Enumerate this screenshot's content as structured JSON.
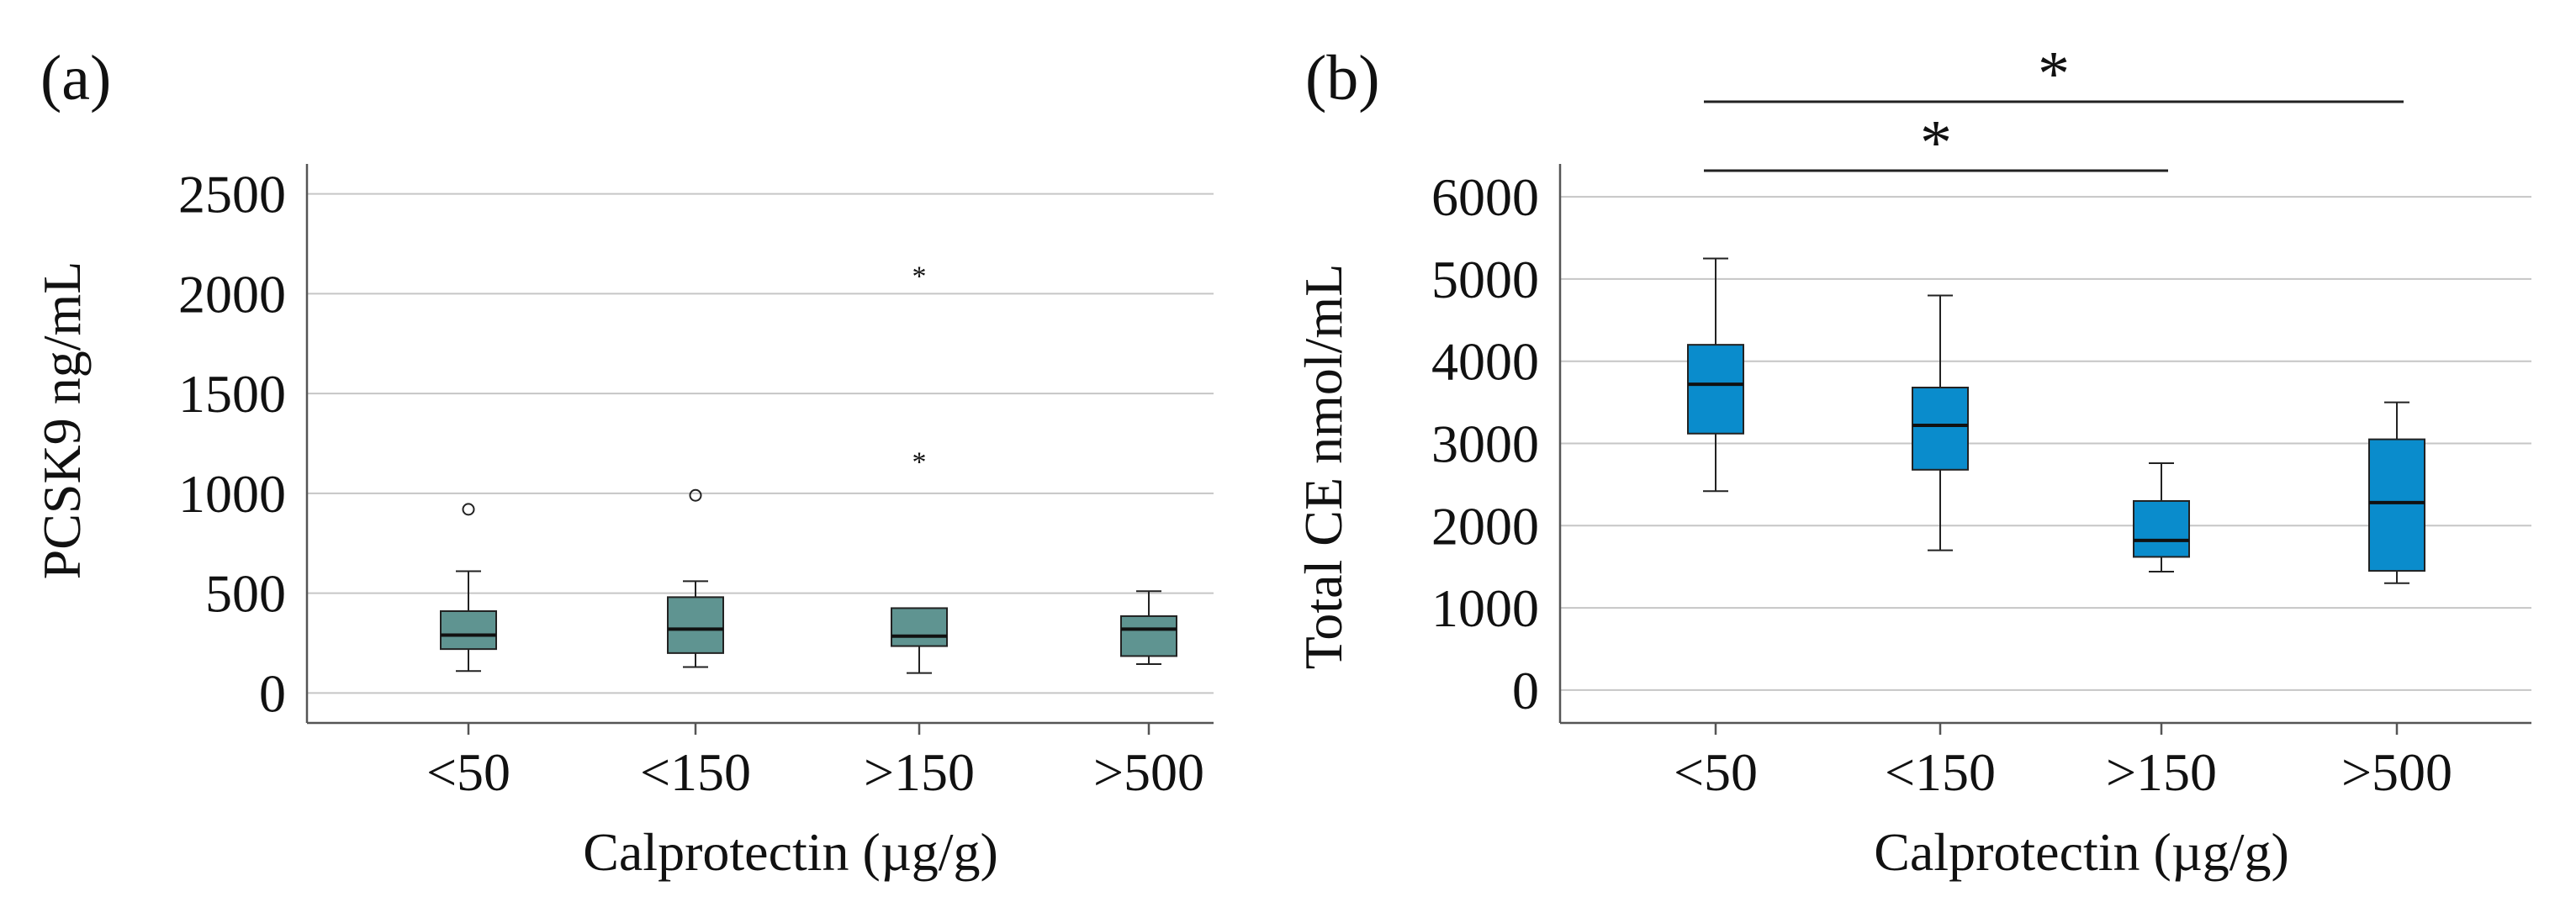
{
  "chart_data": [
    {
      "type": "box",
      "panel_label": "(a)",
      "xlabel": "Calprotectin (µg/g)",
      "ylabel": "PCSK9 ng/mL",
      "ylim": [
        -150,
        2650
      ],
      "yticks": [
        0,
        500,
        1000,
        1500,
        2000,
        2500
      ],
      "ytick_labels": [
        "0",
        "500",
        "1000",
        "1500",
        "2000",
        "2500"
      ],
      "grid": true,
      "box_color": "#5f9491",
      "categories": [
        "<50",
        "<150",
        ">150",
        ">500"
      ],
      "boxes": [
        {
          "category": "<50",
          "whisker_low": 110,
          "q1": 220,
          "median": 290,
          "q3": 410,
          "whisker_high": 610
        },
        {
          "category": "<150",
          "whisker_low": 130,
          "q1": 200,
          "median": 320,
          "q3": 480,
          "whisker_high": 560
        },
        {
          "category": ">150",
          "whisker_low": 100,
          "q1": 235,
          "median": 285,
          "q3": 425,
          "whisker_high": 425
        },
        {
          "category": ">500",
          "whisker_low": 145,
          "q1": 185,
          "median": 320,
          "q3": 385,
          "whisker_high": 510
        }
      ],
      "outliers": [
        {
          "category": "<50",
          "value": 920,
          "marker": "circle"
        },
        {
          "category": "<150",
          "value": 990,
          "marker": "circle"
        },
        {
          "category": ">150",
          "value": 2100,
          "marker": "star"
        },
        {
          "category": ">150",
          "value": 1170,
          "marker": "star"
        }
      ],
      "significance": []
    },
    {
      "type": "box",
      "panel_label": "(b)",
      "xlabel": "Calprotectin (µg/g)",
      "ylabel": "Total CE  nmol/mL",
      "ylim": [
        -400,
        6400
      ],
      "yticks": [
        0,
        1000,
        2000,
        3000,
        4000,
        5000,
        6000
      ],
      "ytick_labels": [
        "0",
        "1000",
        "2000",
        "3000",
        "4000",
        "5000",
        "6000"
      ],
      "grid": true,
      "box_color": "#0a8ccc",
      "categories": [
        "<50",
        "<150",
        ">150",
        ">500"
      ],
      "boxes": [
        {
          "category": "<50",
          "whisker_low": 2420,
          "q1": 3120,
          "median": 3720,
          "q3": 4200,
          "whisker_high": 5250
        },
        {
          "category": "<150",
          "whisker_low": 1700,
          "q1": 2680,
          "median": 3220,
          "q3": 3680,
          "whisker_high": 4800
        },
        {
          "category": ">150",
          "whisker_low": 1440,
          "q1": 1620,
          "median": 1820,
          "q3": 2300,
          "whisker_high": 2760
        },
        {
          "category": ">500",
          "whisker_low": 1300,
          "q1": 1450,
          "median": 2280,
          "q3": 3050,
          "whisker_high": 3500
        }
      ],
      "outliers": [],
      "significance": [
        {
          "from": "<50",
          "to": ">150",
          "label": "*",
          "level": 1
        },
        {
          "from": "<50",
          "to": ">500",
          "label": "*",
          "level": 2
        }
      ]
    }
  ]
}
